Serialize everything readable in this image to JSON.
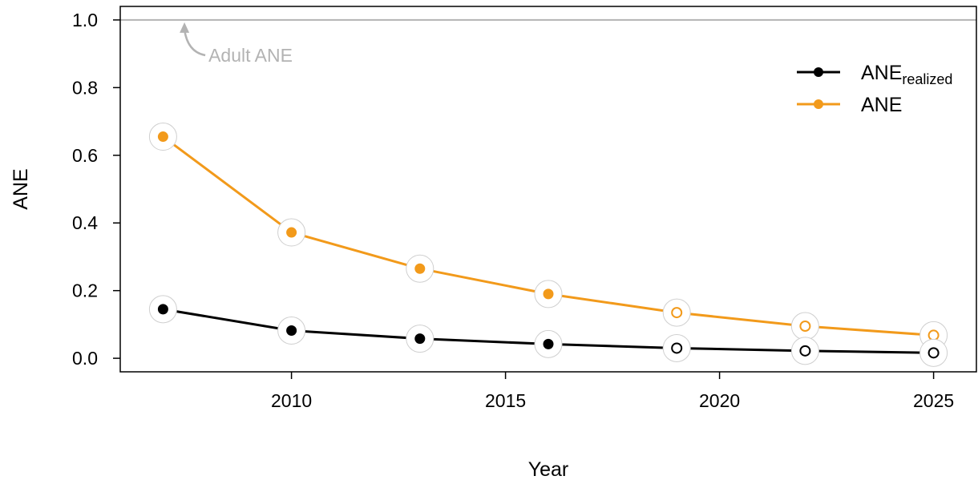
{
  "chart_data": {
    "type": "line",
    "xlabel": "Year",
    "ylabel": "ANE",
    "xlim": [
      2006,
      2026
    ],
    "ylim": [
      -0.04,
      1.04
    ],
    "x_ticks": [
      2010,
      2015,
      2020,
      2025
    ],
    "y_ticks": [
      "0.0",
      "0.2",
      "0.4",
      "0.6",
      "0.8",
      "1.0"
    ],
    "x": [
      2007,
      2010,
      2013,
      2016,
      2019,
      2022,
      2025
    ],
    "series": [
      {
        "name": "ANE",
        "color": "#f29a1b",
        "values": [
          0.655,
          0.372,
          0.265,
          0.19,
          0.135,
          0.095,
          0.068
        ],
        "marker_filled": [
          true,
          true,
          true,
          true,
          false,
          false,
          false
        ]
      },
      {
        "name": "ANErealized",
        "color": "#000000",
        "values": [
          0.145,
          0.082,
          0.058,
          0.042,
          0.03,
          0.022,
          0.016
        ],
        "marker_filled": [
          true,
          true,
          true,
          true,
          false,
          false,
          false
        ]
      }
    ],
    "legend": {
      "placement": "top-right",
      "items": [
        {
          "label": "ANE",
          "subscript": "realized",
          "color": "#000000"
        },
        {
          "label": "ANE",
          "subscript": "",
          "color": "#f29a1b"
        }
      ]
    },
    "reference_line": {
      "y": 1.0,
      "color": "#b3b3b3",
      "label": "Adult ANE"
    },
    "grid": false
  }
}
